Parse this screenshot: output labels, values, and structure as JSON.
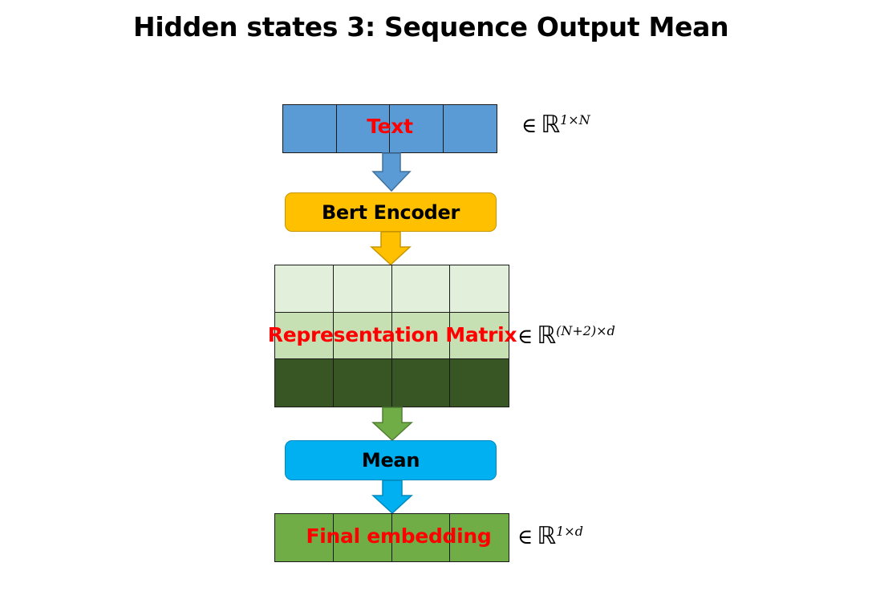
{
  "title": "Hidden states 3: Sequence Output Mean",
  "text_block": {
    "label": "Text",
    "math": {
      "symbol": "∈",
      "set": "ℝ",
      "sup": "1×N"
    }
  },
  "encoder": {
    "label": "Bert Encoder"
  },
  "rep_matrix": {
    "label": "Representation Matrix",
    "math": {
      "symbol": "∈",
      "set": "ℝ",
      "sup": "(N+2)×d"
    }
  },
  "mean": {
    "label": "Mean"
  },
  "final": {
    "label": "Final embedding",
    "math": {
      "symbol": "∈",
      "set": "ℝ",
      "sup": "1×d"
    }
  },
  "colors": {
    "text_fill": "#5b9bd5",
    "encoder_fill": "#ffc000",
    "mean_fill": "#00b0f0",
    "final_fill": "#70ad47",
    "matrix_rows": [
      "#e2efda",
      "#c6e0b4",
      "#375623"
    ]
  }
}
